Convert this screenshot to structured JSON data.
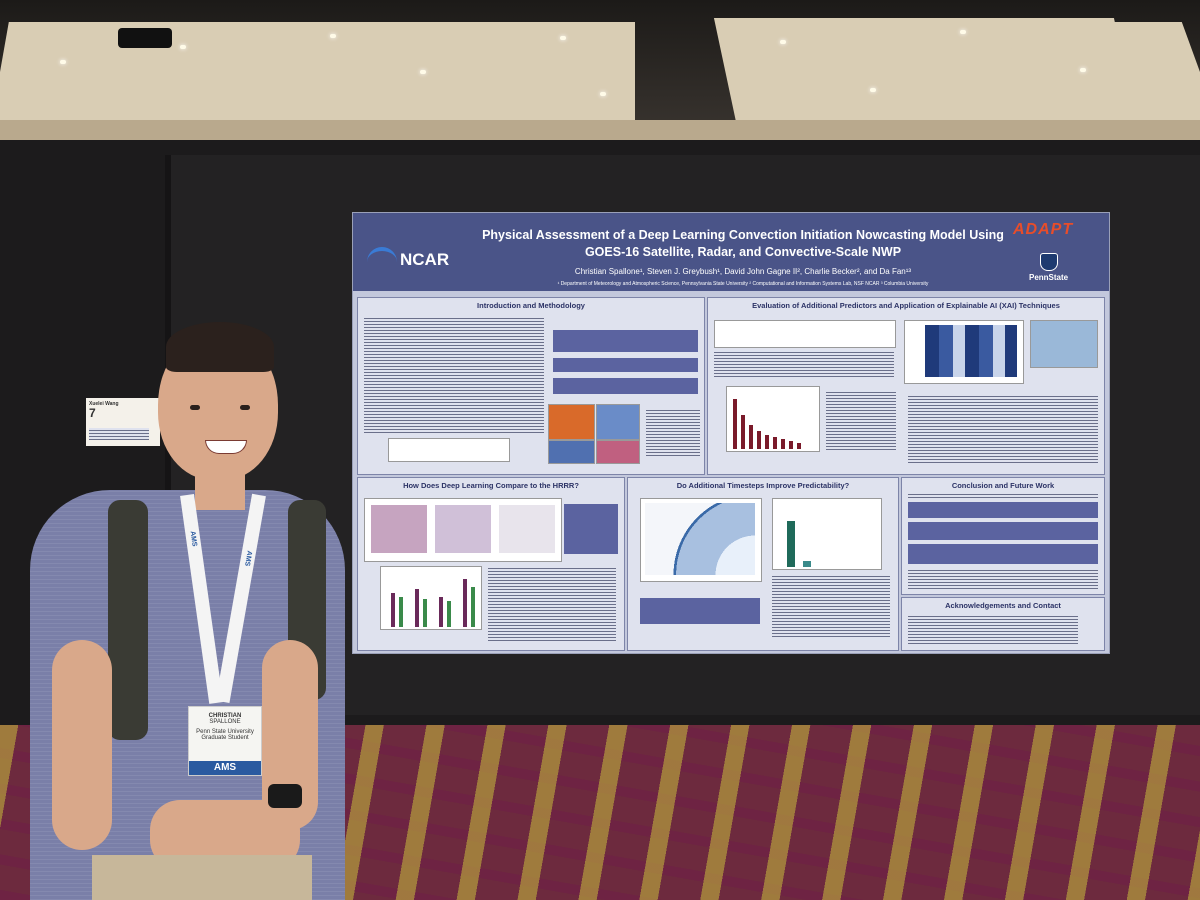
{
  "poster": {
    "title": "Physical Assessment of a Deep Learning Convection Initiation Nowcasting Model Using GOES-16 Satellite, Radar, and Convective-Scale NWP",
    "authors": "Christian Spallone¹, Steven J. Greybush¹, David John Gagne II², Charlie Becker², and Da Fan¹³",
    "affiliations": "¹ Department of Meteorology and Atmospheric Science, Pennsylvania State University   ² Computational and Information Systems Lab, NSF NCAR   ³ Columbia University",
    "logo_left": "NCAR",
    "logo_right_top": "ADAPT",
    "logo_right_bottom": "PennState",
    "sections": {
      "intro": "Introduction and Methodology",
      "xai": "Evaluation of Additional Predictors and Application of Explainable AI (XAI) Techniques",
      "hrrr": "How Does Deep Learning Compare to the HRRR?",
      "timesteps": "Do Additional Timesteps Improve Predictability?",
      "conclusion": "Conclusion and Future Work",
      "ack": "Acknowledgements and Contact"
    }
  },
  "badge": {
    "first_name": "CHRISTIAN",
    "last_name": "SPALLONE",
    "org": "Penn State University",
    "role": "Graduate Student",
    "brand": "AMS"
  },
  "lanyard_text": "AMS",
  "sign": {
    "name": "Xuelei Wang",
    "number": "7"
  },
  "colors": {
    "poster_header": "#4a5488",
    "poster_bg": "#c3c8dc",
    "shirt": "#7a7fa8",
    "carpet": "#6d2a3e"
  }
}
